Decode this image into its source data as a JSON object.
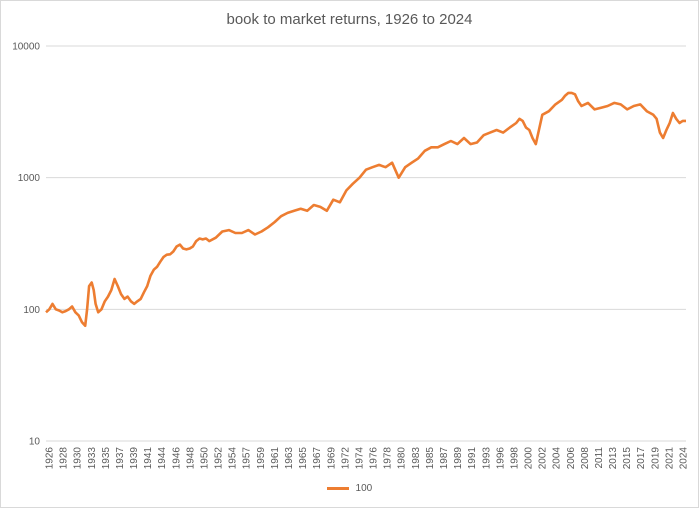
{
  "chart_data": {
    "type": "line",
    "title": "book to market returns, 1926 to 2024",
    "yscale": "log",
    "ylim": [
      10,
      10000
    ],
    "y_ticks": [
      "10",
      "100",
      "1000",
      "10000"
    ],
    "x_ticks": [
      "1926",
      "1928",
      "1930",
      "1933",
      "1935",
      "1937",
      "1939",
      "1941",
      "1944",
      "1946",
      "1948",
      "1950",
      "1952",
      "1954",
      "1957",
      "1959",
      "1961",
      "1963",
      "1965",
      "1967",
      "1969",
      "1972",
      "1974",
      "1976",
      "1978",
      "1980",
      "1983",
      "1985",
      "1987",
      "1989",
      "1991",
      "1993",
      "1996",
      "1998",
      "2000",
      "2002",
      "2004",
      "2006",
      "2008",
      "2011",
      "2013",
      "2015",
      "2017",
      "2019",
      "2021",
      "2024"
    ],
    "xlim": [
      1926,
      2024
    ],
    "grid": true,
    "legend_position": "bottom",
    "series": [
      {
        "name": "100",
        "color": "#ed7d31",
        "x": [
          1926.0,
          1926.5,
          1927.0,
          1927.5,
          1928.0,
          1928.5,
          1929.0,
          1929.5,
          1930.0,
          1930.5,
          1931.0,
          1931.5,
          1932.0,
          1932.3,
          1932.6,
          1933.0,
          1933.3,
          1933.6,
          1934.0,
          1934.5,
          1935.0,
          1935.5,
          1936.0,
          1936.5,
          1937.0,
          1937.5,
          1938.0,
          1938.5,
          1939.0,
          1939.5,
          1940.0,
          1940.5,
          1941.0,
          1941.5,
          1942.0,
          1942.5,
          1943.0,
          1943.5,
          1944.0,
          1944.5,
          1945.0,
          1945.5,
          1946.0,
          1946.5,
          1947.0,
          1947.5,
          1948.0,
          1948.5,
          1949.0,
          1949.5,
          1950.0,
          1950.5,
          1951.0,
          1952.0,
          1953.0,
          1954.0,
          1955.0,
          1956.0,
          1957.0,
          1958.0,
          1959.0,
          1960.0,
          1961.0,
          1962.0,
          1963.0,
          1964.0,
          1965.0,
          1966.0,
          1967.0,
          1968.0,
          1969.0,
          1970.0,
          1971.0,
          1972.0,
          1973.0,
          1974.0,
          1975.0,
          1976.0,
          1977.0,
          1978.0,
          1979.0,
          1980.0,
          1981.0,
          1982.0,
          1983.0,
          1984.0,
          1985.0,
          1986.0,
          1987.0,
          1988.0,
          1989.0,
          1990.0,
          1991.0,
          1992.0,
          1993.0,
          1994.0,
          1995.0,
          1996.0,
          1997.0,
          1998.0,
          1998.5,
          1999.0,
          1999.5,
          2000.0,
          2000.5,
          2001.0,
          2002.0,
          2003.0,
          2004.0,
          2005.0,
          2005.5,
          2006.0,
          2006.5,
          2007.0,
          2007.5,
          2008.0,
          2008.5,
          2009.0,
          2010.0,
          2011.0,
          2012.0,
          2013.0,
          2014.0,
          2015.0,
          2016.0,
          2017.0,
          2018.0,
          2019.0,
          2019.5,
          2020.0,
          2020.5,
          2021.0,
          2021.5,
          2022.0,
          2022.5,
          2023.0,
          2023.5,
          2024.0
        ],
        "values": [
          95,
          100,
          110,
          100,
          98,
          95,
          97,
          100,
          105,
          95,
          90,
          80,
          75,
          100,
          150,
          160,
          140,
          110,
          95,
          100,
          115,
          125,
          140,
          170,
          150,
          130,
          120,
          125,
          115,
          110,
          115,
          120,
          135,
          150,
          180,
          200,
          210,
          230,
          250,
          260,
          262,
          275,
          300,
          310,
          290,
          285,
          290,
          300,
          330,
          345,
          340,
          345,
          330,
          350,
          390,
          400,
          380,
          380,
          400,
          370,
          390,
          420,
          460,
          510,
          540,
          560,
          580,
          560,
          620,
          600,
          560,
          680,
          650,
          800,
          900,
          1000,
          1150,
          1200,
          1250,
          1200,
          1300,
          1000,
          1200,
          1300,
          1400,
          1600,
          1700,
          1700,
          1800,
          1900,
          1800,
          2000,
          1800,
          1850,
          2100,
          2200,
          2300,
          2200,
          2400,
          2600,
          2800,
          2700,
          2400,
          2300,
          2000,
          1800,
          3000,
          3200,
          3600,
          3900,
          4200,
          4400,
          4400,
          4300,
          3800,
          3500,
          3600,
          3700,
          3300,
          3400,
          3500,
          3700,
          3600,
          3300,
          3500,
          3600,
          3200,
          3000,
          2800,
          2200,
          2000,
          2300,
          2600,
          3100,
          2800,
          2600,
          2700,
          2700
        ]
      }
    ]
  }
}
